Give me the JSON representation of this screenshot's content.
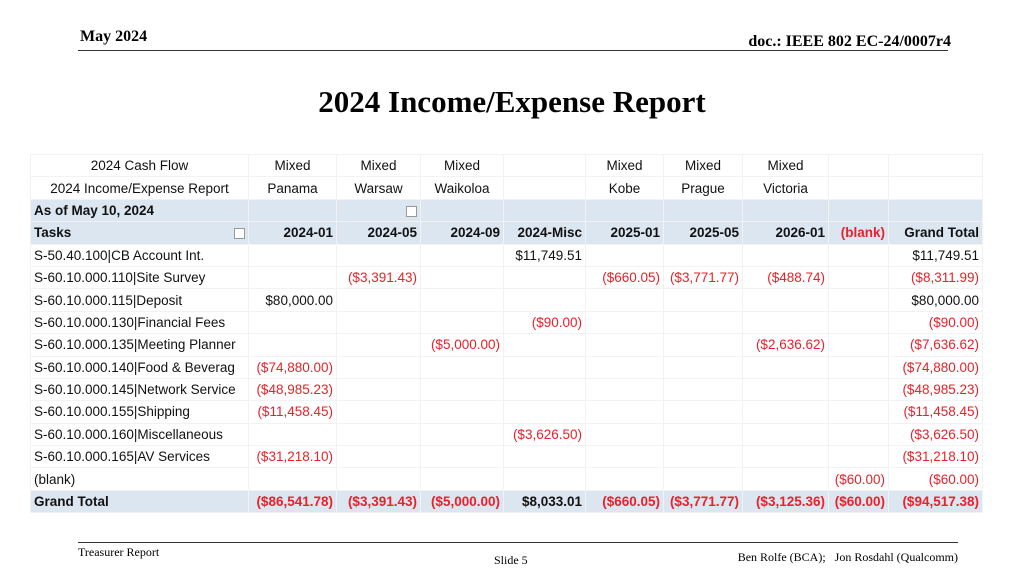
{
  "header": {
    "date": "May 2024",
    "doc": "doc.: IEEE 802 EC-24/0007r4"
  },
  "title": "2024 Income/Expense Report",
  "table": {
    "header_rows": [
      [
        "2024 Cash Flow",
        "Mixed",
        "Mixed",
        "Mixed",
        null,
        "Mixed",
        "Mixed",
        "Mixed",
        null,
        null
      ],
      [
        "2024 Income/Expense Report",
        "Panama",
        "Warsaw",
        "Waikoloa",
        null,
        "Kobe",
        "Prague",
        "Victoria",
        null,
        null
      ],
      [
        "As of May 10, 2024",
        null,
        null,
        null,
        null,
        null,
        null,
        null,
        null,
        null
      ]
    ],
    "columns": [
      "Tasks",
      "2024-01",
      "2024-05",
      "2024-09",
      "2024-Misc",
      "2025-01",
      "2025-05",
      "2026-01",
      "(blank)",
      "Grand Total"
    ],
    "rows": [
      [
        "S-50.40.100|CB Account Int.",
        null,
        null,
        null,
        "$11,749.51",
        null,
        null,
        null,
        null,
        "$11,749.51"
      ],
      [
        "S-60.10.000.110|Site Survey",
        null,
        "($3,391.43)",
        null,
        null,
        "($660.05)",
        "($3,771.77)",
        "($488.74)",
        null,
        "($8,311.99)"
      ],
      [
        "S-60.10.000.115|Deposit",
        "$80,000.00",
        null,
        null,
        null,
        null,
        null,
        null,
        null,
        "$80,000.00"
      ],
      [
        "S-60.10.000.130|Financial Fees",
        null,
        null,
        null,
        "($90.00)",
        null,
        null,
        null,
        null,
        "($90.00)"
      ],
      [
        "S-60.10.000.135|Meeting Planner",
        null,
        null,
        "($5,000.00)",
        null,
        null,
        null,
        "($2,636.62)",
        null,
        "($7,636.62)"
      ],
      [
        "S-60.10.000.140|Food & Beverag",
        "($74,880.00)",
        null,
        null,
        null,
        null,
        null,
        null,
        null,
        "($74,880.00)"
      ],
      [
        "S-60.10.000.145|Network Service",
        "($48,985.23)",
        null,
        null,
        null,
        null,
        null,
        null,
        null,
        "($48,985.23)"
      ],
      [
        "S-60.10.000.155|Shipping",
        "($11,458.45)",
        null,
        null,
        null,
        null,
        null,
        null,
        null,
        "($11,458.45)"
      ],
      [
        "S-60.10.000.160|Miscellaneous",
        null,
        null,
        null,
        "($3,626.50)",
        null,
        null,
        null,
        null,
        "($3,626.50)"
      ],
      [
        "S-60.10.000.165|AV Services",
        "($31,218.10)",
        null,
        null,
        null,
        null,
        null,
        null,
        null,
        "($31,218.10)"
      ],
      [
        "(blank)",
        null,
        null,
        null,
        null,
        null,
        null,
        null,
        "($60.00)",
        "($60.00)"
      ]
    ],
    "total_row": [
      "Grand Total",
      "($86,541.78)",
      "($3,391.43)",
      "($5,000.00)",
      "$8,033.01",
      "($660.05)",
      "($3,771.77)",
      "($3,125.36)",
      "($60.00)",
      "($94,517.38)"
    ]
  },
  "footer": {
    "left": "Treasurer Report",
    "slide": "Slide 5",
    "authors": "Ben Rolfe (BCA);   Jon Rosdahl (Qualcomm)"
  }
}
